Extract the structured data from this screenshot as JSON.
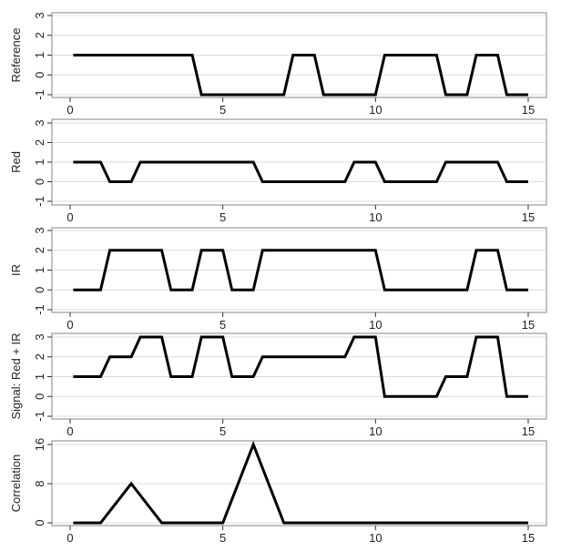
{
  "chart_data": [
    {
      "type": "line",
      "ylabel": "Reference",
      "xlabel": "",
      "xlim": [
        0,
        15
      ],
      "ylim": [
        -1,
        3
      ],
      "xticks": [
        0,
        5,
        10,
        15
      ],
      "yticks": [
        -1,
        0,
        1,
        2,
        3
      ],
      "grid": true,
      "x": [
        0.1,
        4,
        4.3,
        7,
        7.3,
        8,
        8.3,
        10,
        10.3,
        12,
        12.3,
        13,
        13.3,
        14,
        14.3,
        15
      ],
      "y": [
        1,
        1,
        -1,
        -1,
        1,
        1,
        -1,
        -1,
        1,
        1,
        -1,
        -1,
        1,
        1,
        -1,
        -1
      ]
    },
    {
      "type": "line",
      "ylabel": "Red",
      "xlabel": "",
      "xlim": [
        0,
        15
      ],
      "ylim": [
        -1,
        3
      ],
      "xticks": [
        0,
        5,
        10,
        15
      ],
      "yticks": [
        -1,
        0,
        1,
        2,
        3
      ],
      "grid": true,
      "x": [
        0.1,
        1,
        1.3,
        2,
        2.3,
        6,
        6.3,
        9,
        9.3,
        10,
        10.3,
        12,
        12.3,
        14,
        14.3,
        15
      ],
      "y": [
        1,
        1,
        0,
        0,
        1,
        1,
        0,
        0,
        1,
        1,
        0,
        0,
        1,
        1,
        0,
        0
      ]
    },
    {
      "type": "line",
      "ylabel": "IR",
      "xlabel": "",
      "xlim": [
        0,
        15
      ],
      "ylim": [
        -1,
        3
      ],
      "xticks": [
        0,
        5,
        10,
        15
      ],
      "yticks": [
        -1,
        0,
        1,
        2,
        3
      ],
      "grid": true,
      "x": [
        0.1,
        1,
        1.3,
        3,
        3.3,
        4,
        4.3,
        5,
        5.3,
        6,
        6.3,
        10,
        10.3,
        13,
        13.3,
        14,
        14.3,
        15
      ],
      "y": [
        0,
        0,
        2,
        2,
        0,
        0,
        2,
        2,
        0,
        0,
        2,
        2,
        0,
        0,
        2,
        2,
        0,
        0
      ]
    },
    {
      "type": "line",
      "ylabel": "Signal: Red + IR",
      "xlabel": "",
      "xlim": [
        0,
        15
      ],
      "ylim": [
        -1,
        3
      ],
      "xticks": [
        0,
        5,
        10,
        15
      ],
      "yticks": [
        -1,
        0,
        1,
        2,
        3
      ],
      "grid": true,
      "x": [
        0.1,
        1,
        1.3,
        2,
        2.3,
        3,
        3.3,
        4,
        4.3,
        5,
        5.3,
        6,
        6.3,
        9,
        9.3,
        10,
        10.3,
        12,
        12.3,
        13,
        13.3,
        14,
        14.3,
        15
      ],
      "y": [
        1,
        1,
        2,
        2,
        3,
        3,
        1,
        1,
        3,
        3,
        1,
        1,
        2,
        2,
        3,
        3,
        0,
        0,
        1,
        1,
        3,
        3,
        0,
        0
      ]
    },
    {
      "type": "line",
      "ylabel": "Correlation",
      "xlabel": "",
      "xlim": [
        0,
        15
      ],
      "ylim": [
        0,
        16
      ],
      "xticks": [
        0,
        5,
        10,
        15
      ],
      "yticks": [
        0,
        8,
        16
      ],
      "grid": true,
      "x": [
        0.1,
        1,
        2,
        3,
        5,
        6,
        7,
        15
      ],
      "y": [
        0,
        0,
        8,
        0,
        0,
        16,
        0,
        0
      ]
    }
  ]
}
